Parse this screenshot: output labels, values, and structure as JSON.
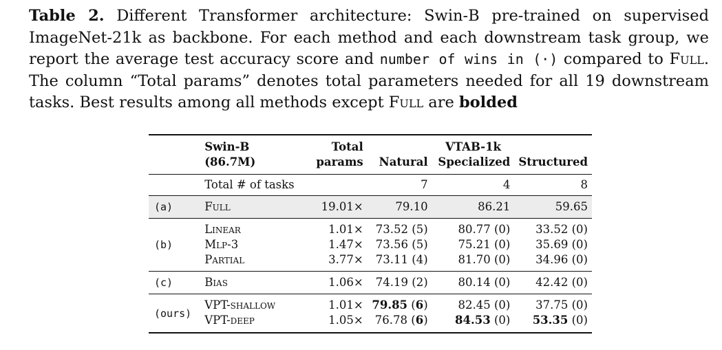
{
  "caption": {
    "label": "Table 2.",
    "line1_rest": " Different Transformer architecture: Swin-B pre-trained on supervised",
    "line2": "ImageNet-21k as backbone. For each method and each downstream task group, we",
    "line3_a": "report the average test accuracy score and ",
    "line3_mono": "number of wins in (·)",
    "line3_b": " compared to ",
    "line3_full": "Full",
    "line3_end": ".",
    "line4": "The column “Total params” denotes total parameters needed for all 19 downstream",
    "line5_a": "tasks. Best results among all methods except ",
    "line5_full": "Full",
    "line5_b": " are ",
    "line5_bold": "bolded"
  },
  "table": {
    "header": {
      "backbone_line1": "Swin-B",
      "backbone_line2": "(86.7M)",
      "total_line1": "Total",
      "total_line2": "params",
      "group": "VTAB-1k",
      "natural": "Natural",
      "specialized": "Specialized",
      "structured": "Structured"
    },
    "tasks_row": {
      "label": "Total # of tasks",
      "natural": "7",
      "specialized": "4",
      "structured": "8"
    },
    "rows": [
      {
        "group": "(a)",
        "method": "Full",
        "params": "19.01×",
        "natural": "79.10",
        "specialized": "86.21",
        "structured": "59.65"
      },
      {
        "group": "(b)",
        "method": "Linear",
        "params": "1.01×",
        "natural": "73.52",
        "natural_wins": "(5)",
        "specialized": "80.77",
        "specialized_wins": "(0)",
        "structured": "33.52",
        "structured_wins": "(0)"
      },
      {
        "group": "",
        "method": "Mlp-3",
        "params": "1.47×",
        "natural": "73.56",
        "natural_wins": "(5)",
        "specialized": "75.21",
        "specialized_wins": "(0)",
        "structured": "35.69",
        "structured_wins": "(0)"
      },
      {
        "group": "",
        "method": "Partial",
        "params": "3.77×",
        "natural": "73.11",
        "natural_wins": "(4)",
        "specialized": "81.70",
        "specialized_wins": "(0)",
        "structured": "34.96",
        "structured_wins": "(0)"
      },
      {
        "group": "(c)",
        "method": "Bias",
        "params": "1.06×",
        "natural": "74.19",
        "natural_wins": "(2)",
        "specialized": "80.14",
        "specialized_wins": "(0)",
        "structured": "42.42",
        "structured_wins": "(0)"
      },
      {
        "group": "(ours)",
        "method": "VPT-shallow",
        "params": "1.01×",
        "natural": "79.85",
        "natural_wins": "(6)",
        "specialized": "82.45",
        "specialized_wins": "(0)",
        "structured": "37.75",
        "structured_wins": "(0)"
      },
      {
        "group": "",
        "method": "VPT-deep",
        "params": "1.05×",
        "natural": "76.78",
        "natural_wins": "(6)",
        "specialized": "84.53",
        "specialized_wins": "(0)",
        "structured": "53.35",
        "structured_wins": "(0)"
      }
    ]
  }
}
